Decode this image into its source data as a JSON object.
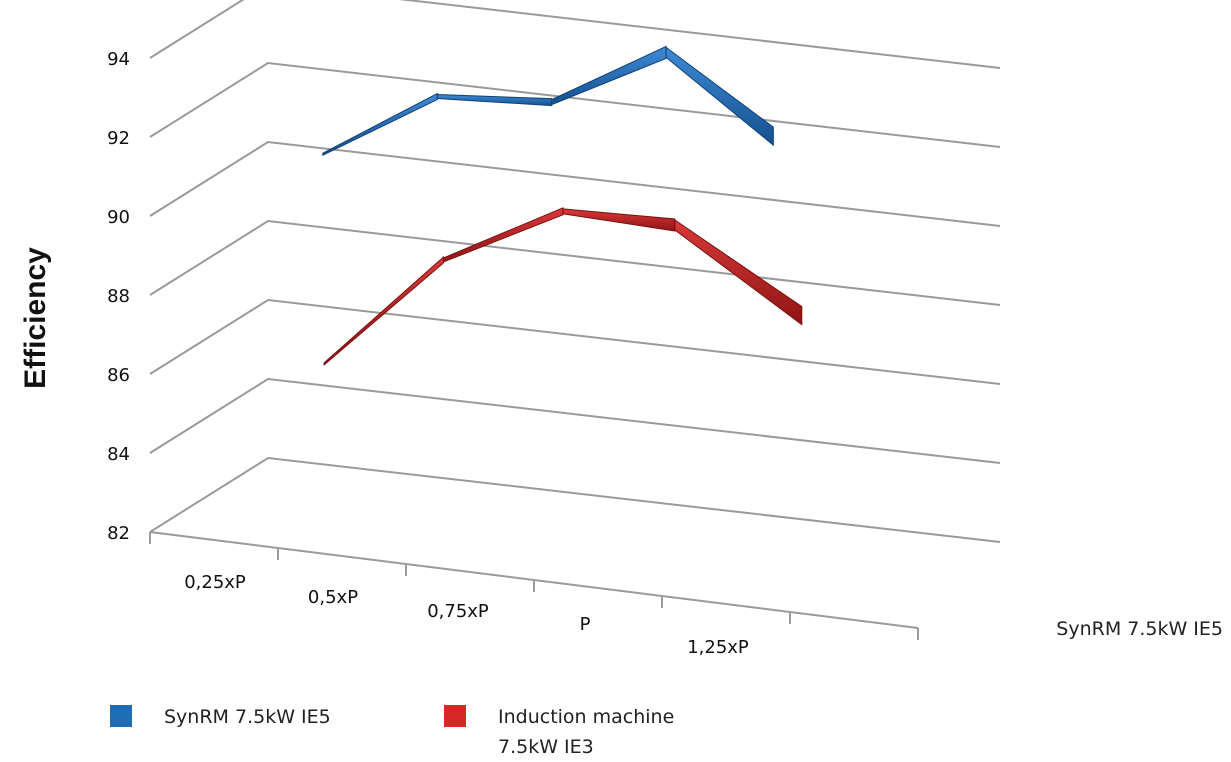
{
  "chart_data": {
    "type": "line",
    "style": "3d-ribbon",
    "ylabel": "Efficiency",
    "xlabel": "",
    "ylim": [
      82,
      94
    ],
    "yticks": [
      "82",
      "84",
      "86",
      "88",
      "90",
      "92",
      "94"
    ],
    "categories": [
      "0,25xP",
      "0,5xP",
      "0,75xP",
      "P",
      "1,25xP"
    ],
    "depth_label": "SynRM 7.5kW IE5",
    "grid": true,
    "legend_position": "bottom",
    "series": [
      {
        "name": "SynRM 7.5kW IE5",
        "color": "#1f6db5",
        "values": [
          89.9,
          91.7,
          91.9,
          93.5,
          91.7
        ]
      },
      {
        "name": "Induction machine 7.5kW IE3",
        "color": "#d62828",
        "values": [
          85.9,
          88.9,
          90.5,
          90.5,
          88.6
        ]
      }
    ]
  }
}
